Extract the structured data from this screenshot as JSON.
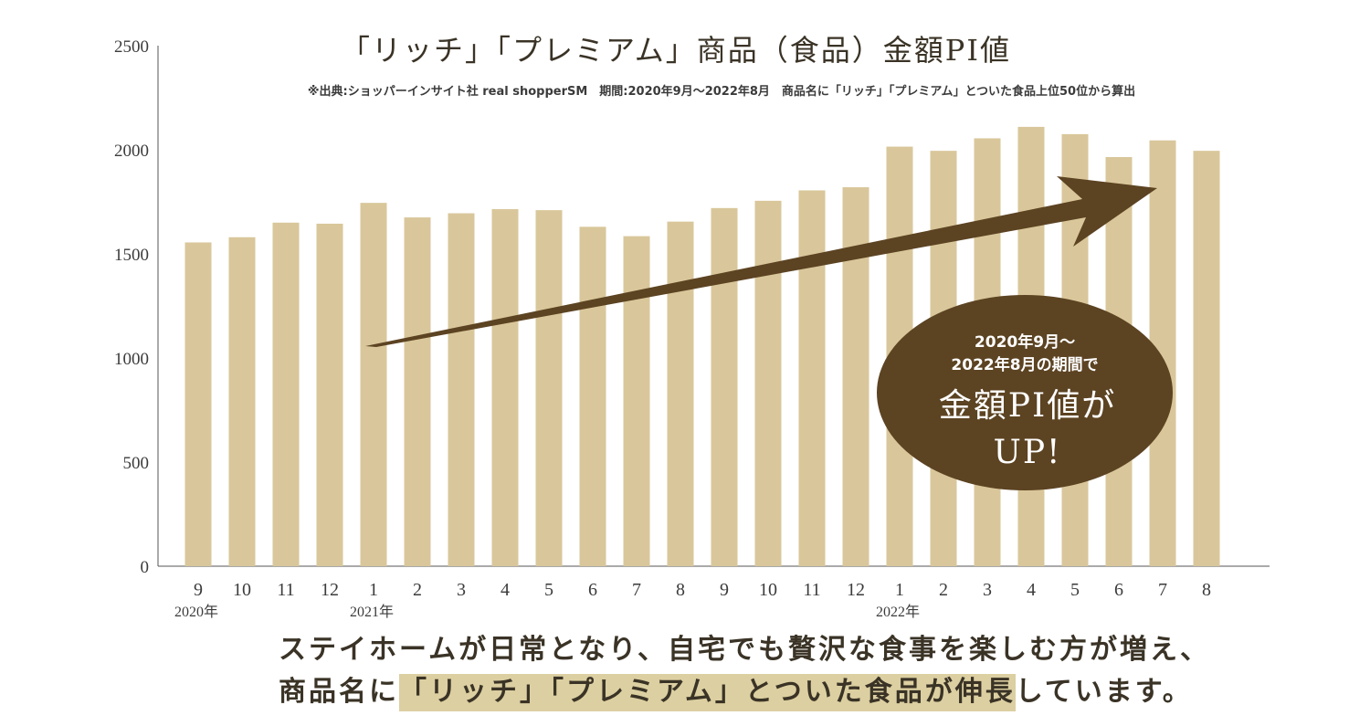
{
  "chart_data": {
    "type": "bar",
    "title": "「リッチ」「プレミアム」商品（食品）金額PI値",
    "source_note": "※出典:ショッパーインサイト社 real shopperSM　期間:2020年9月〜2022年8月　商品名に「リッチ」「プレミアム」とついた食品上位50位から算出",
    "categories": [
      "9",
      "10",
      "11",
      "12",
      "1",
      "2",
      "3",
      "4",
      "5",
      "6",
      "7",
      "8",
      "9",
      "10",
      "11",
      "12",
      "1",
      "2",
      "3",
      "4",
      "5",
      "6",
      "7",
      "8"
    ],
    "year_labels": [
      {
        "index": 0,
        "label": "2020年"
      },
      {
        "index": 4,
        "label": "2021年"
      },
      {
        "index": 16,
        "label": "2022年"
      }
    ],
    "values": [
      1555,
      1580,
      1650,
      1645,
      1745,
      1675,
      1695,
      1715,
      1710,
      1630,
      1585,
      1655,
      1720,
      1755,
      1805,
      1820,
      2015,
      1995,
      2055,
      2110,
      2075,
      1965,
      2045,
      1995
    ],
    "ylim": [
      0,
      2500
    ],
    "yticks": [
      0,
      500,
      1000,
      1500,
      2000,
      2500
    ],
    "xlabel": "",
    "ylabel": "",
    "bar_color": "#d9c79b",
    "arrow_color": "#5c4322",
    "annotation": {
      "line1": "2020年9月〜",
      "line2": "2022年8月の期間で",
      "line3": "金額PI値が",
      "line4": "UP!",
      "fill": "#5c4322"
    }
  },
  "caption": {
    "line1": "ステイホームが日常となり、自宅でも贅沢な食事を楽しむ方が増え、",
    "line2_before": "商品名に",
    "line2_highlight": "「リッチ」「プレミアム」とついた食品が伸長",
    "line2_after": "しています。",
    "highlight_color": "#dccfa1"
  }
}
